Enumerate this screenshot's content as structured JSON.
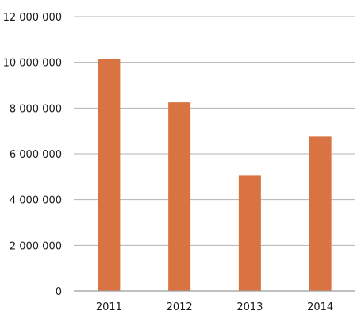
{
  "chart_data": {
    "type": "bar",
    "title": "",
    "xlabel": "",
    "ylabel": "",
    "categories": [
      "2011",
      "2012",
      "2013",
      "2014"
    ],
    "values": [
      10150000,
      8250000,
      5050000,
      6750000
    ],
    "ylim": [
      0,
      12000000
    ],
    "yticks": [
      0,
      2000000,
      4000000,
      6000000,
      8000000,
      10000000,
      12000000
    ],
    "ytick_labels": [
      "0",
      "2 000 000",
      "4 000 000",
      "6 000 000",
      "8 000 000",
      "10 000 000",
      "12 000 000"
    ],
    "grid": true,
    "legend": "none",
    "bar_color": "#d97442"
  }
}
